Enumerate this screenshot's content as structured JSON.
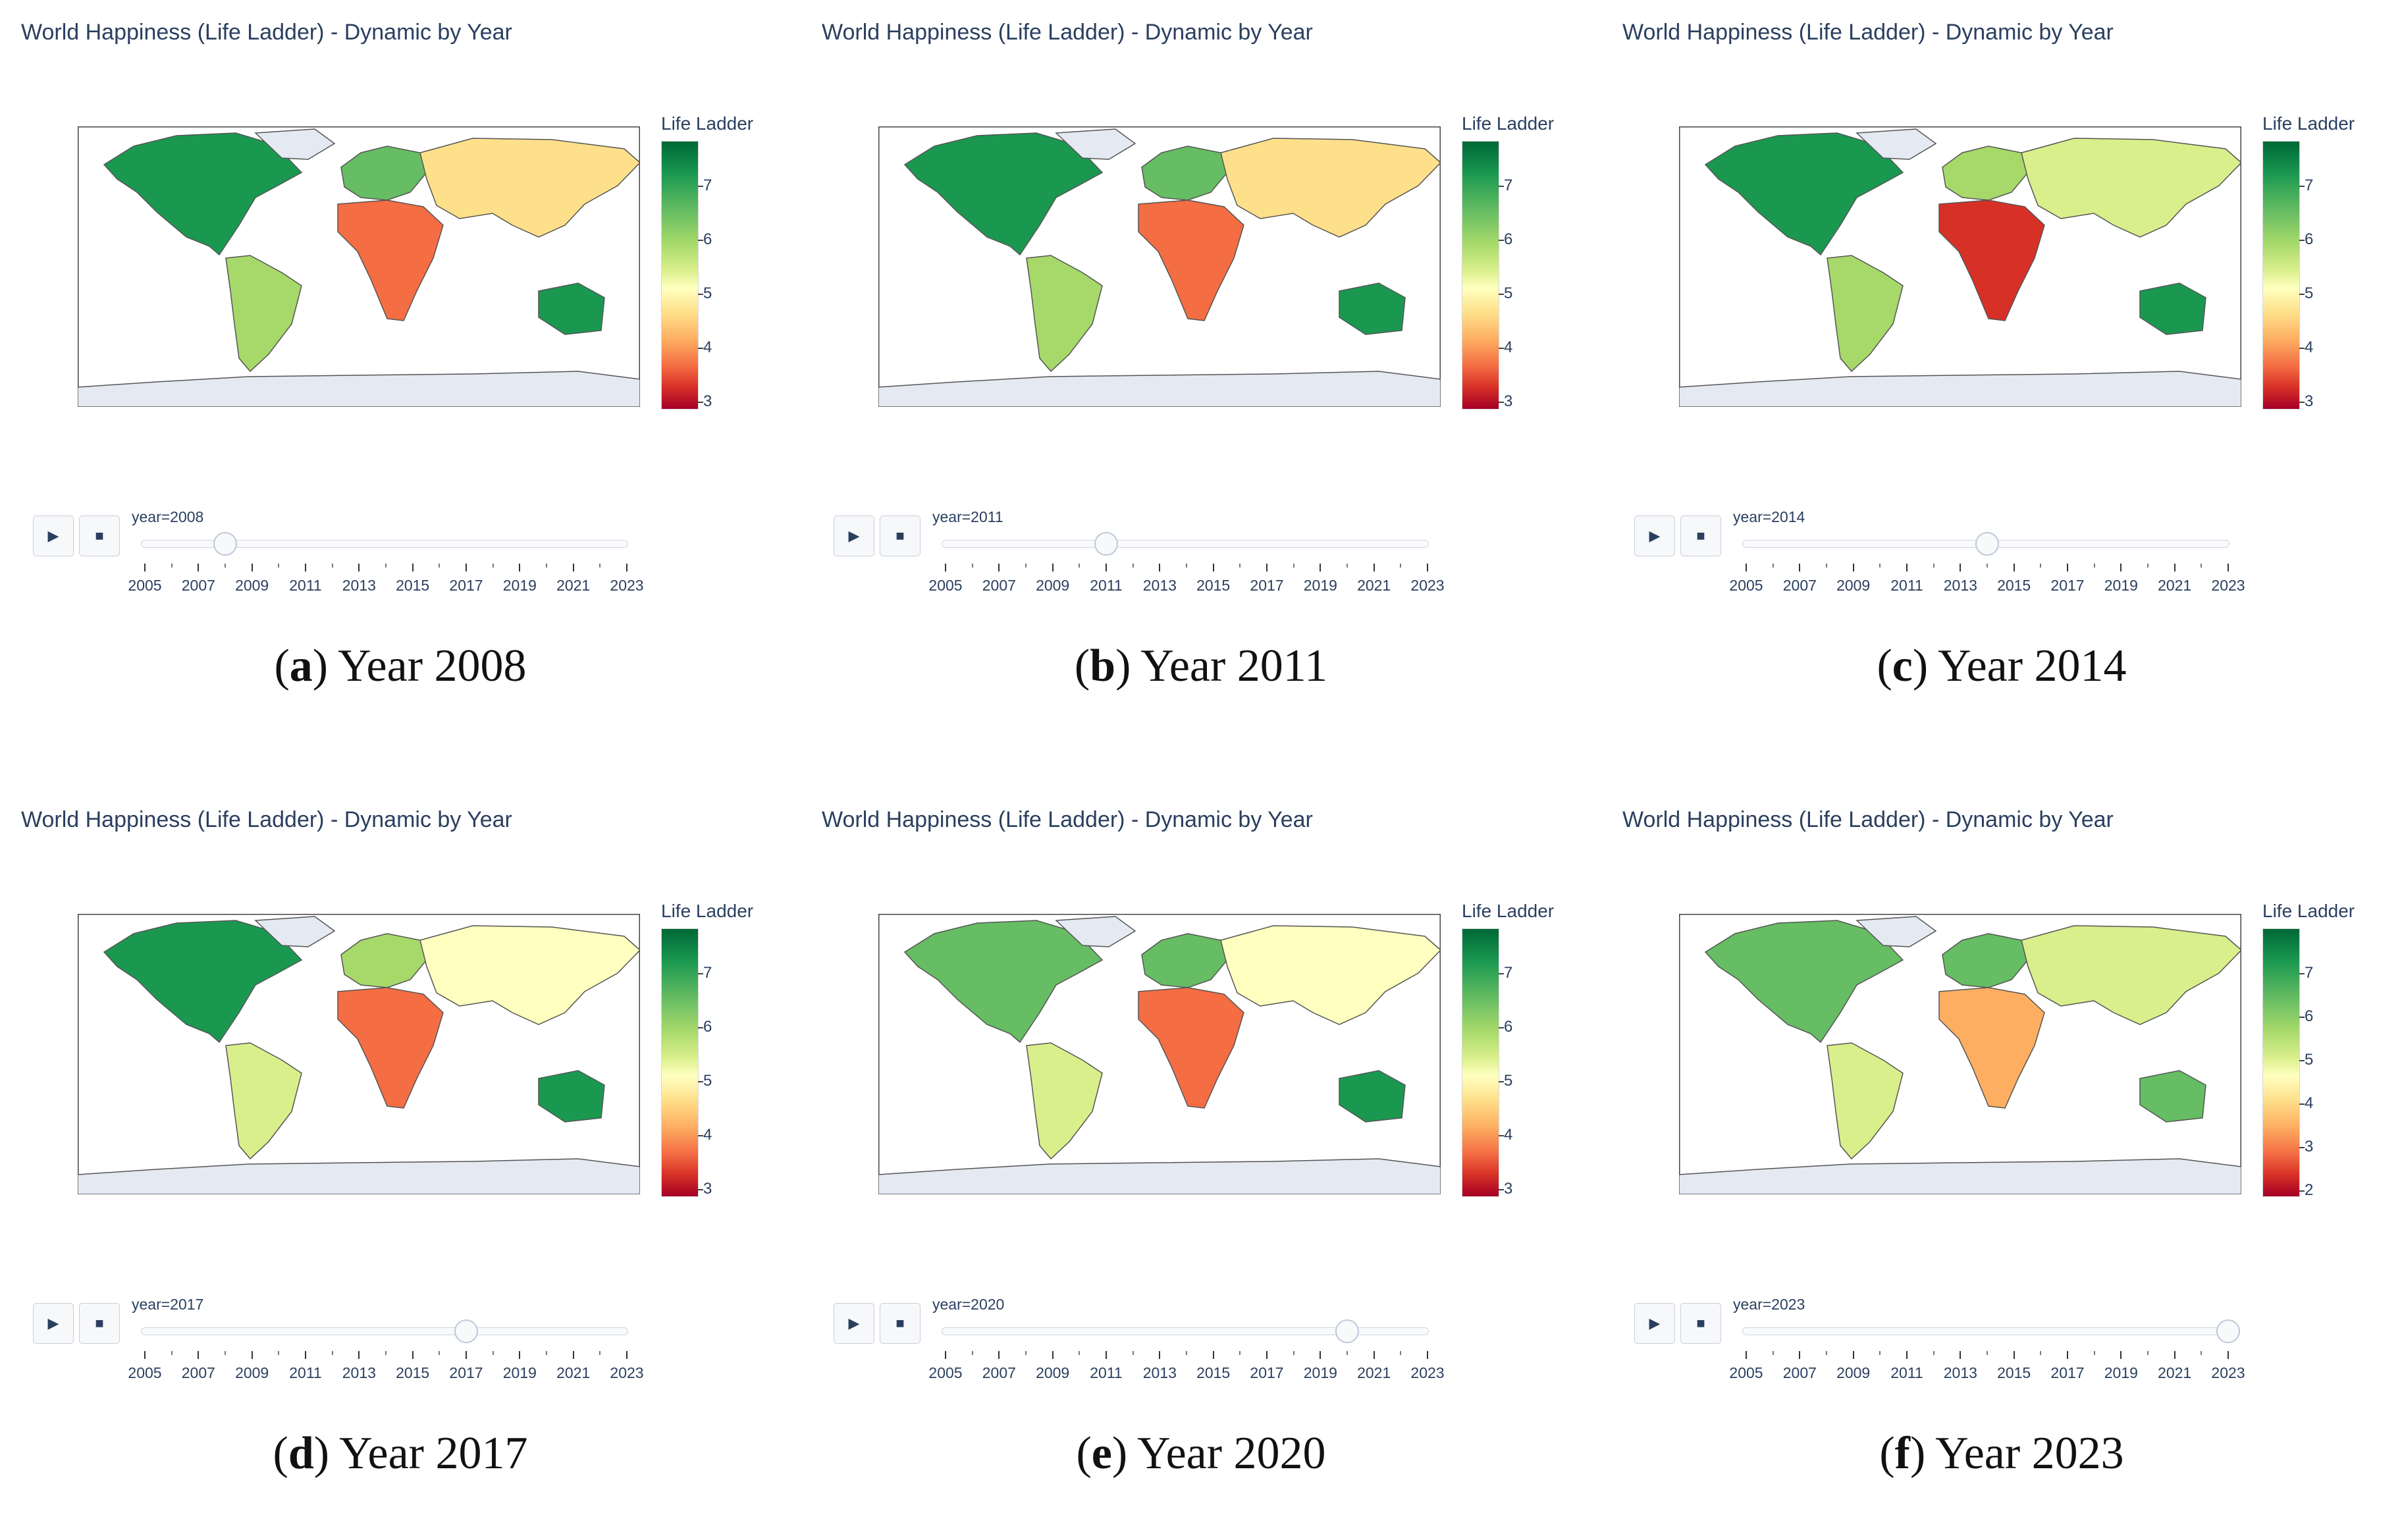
{
  "title": "World Happiness (Life Ladder) - Dynamic by Year",
  "colorbar_title": "Life Ladder",
  "slider_years": [
    "2005",
    "2007",
    "2009",
    "2011",
    "2013",
    "2015",
    "2017",
    "2019",
    "2021",
    "2023"
  ],
  "slider_range": [
    2005,
    2023
  ],
  "controls": {
    "play_icon": "play-icon",
    "stop_icon": "stop-icon",
    "play_glyph": "▶",
    "stop_glyph": "■"
  },
  "colors": {
    "text": "#2a3f5f",
    "land_nodata": "#e4e9f2",
    "high": "#006837",
    "low": "#a50026"
  },
  "panels": [
    {
      "letter": "a",
      "caption_text": "Year 2008",
      "slider_label": "year=2008",
      "year": 2008,
      "colorbar_ticks": [
        "7",
        "6",
        "5",
        "4",
        "3"
      ]
    },
    {
      "letter": "b",
      "caption_text": "Year 2011",
      "slider_label": "year=2011",
      "year": 2011,
      "colorbar_ticks": [
        "7",
        "6",
        "5",
        "4",
        "3"
      ]
    },
    {
      "letter": "c",
      "caption_text": "Year 2014",
      "slider_label": "year=2014",
      "year": 2014,
      "colorbar_ticks": [
        "7",
        "6",
        "5",
        "4",
        "3"
      ]
    },
    {
      "letter": "d",
      "caption_text": "Year 2017",
      "slider_label": "year=2017",
      "year": 2017,
      "colorbar_ticks": [
        "7",
        "6",
        "5",
        "4",
        "3"
      ]
    },
    {
      "letter": "e",
      "caption_text": "Year 2020",
      "slider_label": "year=2020",
      "year": 2020,
      "colorbar_ticks": [
        "7",
        "6",
        "5",
        "4",
        "3"
      ]
    },
    {
      "letter": "f",
      "caption_text": "Year 2023",
      "slider_label": "year=2023",
      "year": 2023,
      "colorbar_ticks": [
        "7",
        "6",
        "5",
        "4",
        "3",
        "2"
      ]
    }
  ]
}
